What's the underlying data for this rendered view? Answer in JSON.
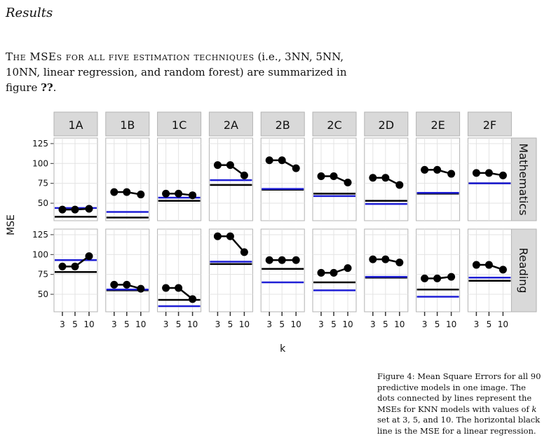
{
  "section": {
    "title": "Results"
  },
  "intro": {
    "lead": "The MSEs for all five estimation techniques",
    "rest": " (i.e., 3NN, 5NN, 10NN, linear regression, and random forest) are summarized in figure ",
    "ref": "??",
    "end": "."
  },
  "caption": {
    "part1": "Figure 4: Mean Square Errors for all 90 predictive models in one image. The dots connected by lines represent the MSEs for KNN models with values of ",
    "k": "k",
    "part2": " set at 3, 5, and 10. The horizontal black line is the MSE for a linear regression."
  },
  "colors": {
    "panel_bg": "#ffffff",
    "panel_border": "#b3b3b3",
    "strip_bg": "#d9d9d9",
    "grid": "#e3e3e3",
    "knn": "#000000",
    "linear_regression": "#000000",
    "random_forest": "#1f1fd6"
  },
  "chart_data": {
    "type": "line",
    "xlabel": "k",
    "ylabel": "MSE",
    "x": [
      3,
      5,
      10
    ],
    "x_ticks": [
      "3",
      "5",
      "10"
    ],
    "y_ticks": [
      50,
      75,
      100,
      125
    ],
    "ylim": [
      28,
      132
    ],
    "columns": [
      "1A",
      "1B",
      "1C",
      "2A",
      "2B",
      "2C",
      "2D",
      "2E",
      "2F"
    ],
    "rows": [
      "Mathematics",
      "Reading"
    ],
    "panels": [
      {
        "row": "Mathematics",
        "col": "1A",
        "knn": [
          42,
          42,
          43
        ],
        "linear_regression": 33,
        "random_forest": 44
      },
      {
        "row": "Mathematics",
        "col": "1B",
        "knn": [
          64,
          64,
          61
        ],
        "linear_regression": 32,
        "random_forest": 39
      },
      {
        "row": "Mathematics",
        "col": "1C",
        "knn": [
          62,
          62,
          60
        ],
        "linear_regression": 53,
        "random_forest": 57
      },
      {
        "row": "Mathematics",
        "col": "2A",
        "knn": [
          98,
          98,
          85
        ],
        "linear_regression": 73,
        "random_forest": 79
      },
      {
        "row": "Mathematics",
        "col": "2B",
        "knn": [
          104,
          104,
          94
        ],
        "linear_regression": 67,
        "random_forest": 68
      },
      {
        "row": "Mathematics",
        "col": "2C",
        "knn": [
          84,
          84,
          76
        ],
        "linear_regression": 62,
        "random_forest": 59
      },
      {
        "row": "Mathematics",
        "col": "2D",
        "knn": [
          82,
          82,
          73
        ],
        "linear_regression": 53,
        "random_forest": 49
      },
      {
        "row": "Mathematics",
        "col": "2E",
        "knn": [
          92,
          92,
          87
        ],
        "linear_regression": 62,
        "random_forest": 63
      },
      {
        "row": "Mathematics",
        "col": "2F",
        "knn": [
          88,
          88,
          85
        ],
        "linear_regression": 75,
        "random_forest": 75
      },
      {
        "row": "Reading",
        "col": "1A",
        "knn": [
          85,
          85,
          98
        ],
        "linear_regression": 78,
        "random_forest": 93
      },
      {
        "row": "Reading",
        "col": "1B",
        "knn": [
          62,
          62,
          57
        ],
        "linear_regression": 55,
        "random_forest": 56
      },
      {
        "row": "Reading",
        "col": "1C",
        "knn": [
          58,
          58,
          44
        ],
        "linear_regression": 43,
        "random_forest": 35
      },
      {
        "row": "Reading",
        "col": "2A",
        "knn": [
          123,
          123,
          103
        ],
        "linear_regression": 88,
        "random_forest": 91
      },
      {
        "row": "Reading",
        "col": "2B",
        "knn": [
          93,
          93,
          93
        ],
        "linear_regression": 82,
        "random_forest": 65
      },
      {
        "row": "Reading",
        "col": "2C",
        "knn": [
          77,
          77,
          83
        ],
        "linear_regression": 65,
        "random_forest": 55
      },
      {
        "row": "Reading",
        "col": "2D",
        "knn": [
          94,
          94,
          90
        ],
        "linear_regression": 71,
        "random_forest": 72
      },
      {
        "row": "Reading",
        "col": "2E",
        "knn": [
          70,
          70,
          72
        ],
        "linear_regression": 56,
        "random_forest": 47
      },
      {
        "row": "Reading",
        "col": "2F",
        "knn": [
          87,
          87,
          81
        ],
        "linear_regression": 67,
        "random_forest": 71
      }
    ]
  }
}
